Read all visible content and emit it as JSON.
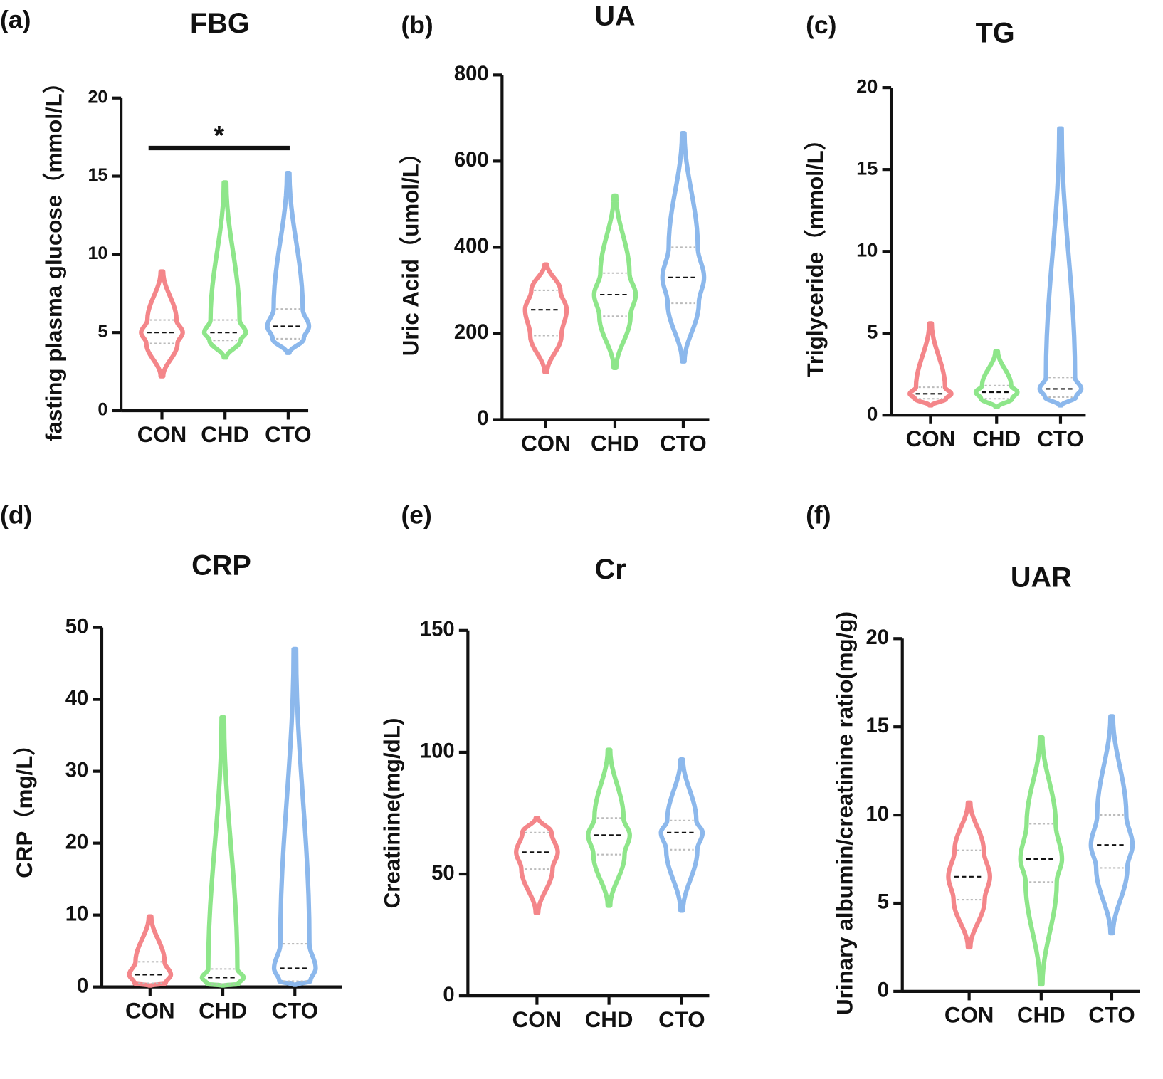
{
  "chart_data": [
    {
      "type": "violin",
      "panel_label": "(a)",
      "title": "FBG",
      "ylabel": "fasting plasma glucose（mmol/L）",
      "categories": [
        "CON",
        "CHD",
        "CTO"
      ],
      "colors": [
        "#f4868a",
        "#8ee68a",
        "#8cb8ec"
      ],
      "min": [
        2.2,
        3.4,
        3.7
      ],
      "q1": [
        4.3,
        4.5,
        4.6
      ],
      "median": [
        5.0,
        5.0,
        5.4
      ],
      "q3": [
        5.8,
        5.8,
        6.5
      ],
      "max": [
        8.9,
        14.6,
        15.2
      ],
      "ylim": [
        0,
        20
      ],
      "yticks": [
        0,
        5,
        10,
        15,
        20
      ],
      "significance": {
        "label": "*",
        "from": "CON",
        "to": "CTO",
        "y": 16.8
      }
    },
    {
      "type": "violin",
      "panel_label": "(b)",
      "title": "UA",
      "ylabel": "Uric Acid（umol/L）",
      "categories": [
        "CON",
        "CHD",
        "CTO"
      ],
      "colors": [
        "#f4868a",
        "#8ee68a",
        "#8cb8ec"
      ],
      "min": [
        110,
        120,
        135
      ],
      "q1": [
        195,
        240,
        270
      ],
      "median": [
        255,
        290,
        330
      ],
      "q3": [
        300,
        340,
        400
      ],
      "max": [
        360,
        520,
        665
      ],
      "ylim": [
        0,
        800
      ],
      "yticks": [
        0,
        200,
        400,
        600,
        800
      ]
    },
    {
      "type": "violin",
      "panel_label": "(c)",
      "title": "TG",
      "ylabel": "Triglyceride（mmol/L）",
      "categories": [
        "CON",
        "CHD",
        "CTO"
      ],
      "colors": [
        "#f4868a",
        "#8ee68a",
        "#8cb8ec"
      ],
      "min": [
        0.6,
        0.5,
        0.6
      ],
      "q1": [
        1.0,
        1.0,
        1.1
      ],
      "median": [
        1.3,
        1.4,
        1.6
      ],
      "q3": [
        1.7,
        1.8,
        2.3
      ],
      "max": [
        5.6,
        3.9,
        17.5
      ],
      "ylim": [
        0,
        20
      ],
      "yticks": [
        0,
        5,
        10,
        15,
        20
      ]
    },
    {
      "type": "violin",
      "panel_label": "(d)",
      "title": "CRP",
      "ylabel": "CRP（mg/L）",
      "categories": [
        "CON",
        "CHD",
        "CTO"
      ],
      "colors": [
        "#f4868a",
        "#8ee68a",
        "#8cb8ec"
      ],
      "min": [
        0.2,
        0.2,
        0.3
      ],
      "q1": [
        0.5,
        0.4,
        0.8
      ],
      "median": [
        1.7,
        1.3,
        2.6
      ],
      "q3": [
        3.5,
        2.5,
        6
      ],
      "max": [
        9.8,
        37.5,
        47
      ],
      "ylim": [
        0,
        50
      ],
      "yticks": [
        0,
        10,
        20,
        30,
        40,
        50
      ]
    },
    {
      "type": "violin",
      "panel_label": "(e)",
      "title": "Cr",
      "ylabel": "Creatinine(mg/dL)",
      "categories": [
        "CON",
        "CHD",
        "CTO"
      ],
      "colors": [
        "#f4868a",
        "#8ee68a",
        "#8cb8ec"
      ],
      "min": [
        34,
        37,
        35
      ],
      "q1": [
        52,
        58,
        60
      ],
      "median": [
        59,
        66,
        67
      ],
      "q3": [
        67,
        73,
        72
      ],
      "max": [
        73,
        101,
        97
      ],
      "ylim": [
        0,
        150
      ],
      "yticks": [
        0,
        50,
        100,
        150
      ]
    },
    {
      "type": "violin",
      "panel_label": "(f)",
      "title": "UAR",
      "ylabel": "Urinary albumin/creatinine ratio(mg/g)",
      "categories": [
        "CON",
        "CHD",
        "CTO"
      ],
      "colors": [
        "#f4868a",
        "#8ee68a",
        "#8cb8ec"
      ],
      "min": [
        2.5,
        0.4,
        3.3
      ],
      "q1": [
        5.2,
        6.2,
        7.0
      ],
      "median": [
        6.5,
        7.5,
        8.3
      ],
      "q3": [
        8.0,
        9.5,
        10.0
      ],
      "max": [
        10.7,
        14.4,
        15.6
      ],
      "ylim": [
        0,
        20
      ],
      "yticks": [
        0,
        5,
        10,
        15,
        20
      ]
    }
  ]
}
